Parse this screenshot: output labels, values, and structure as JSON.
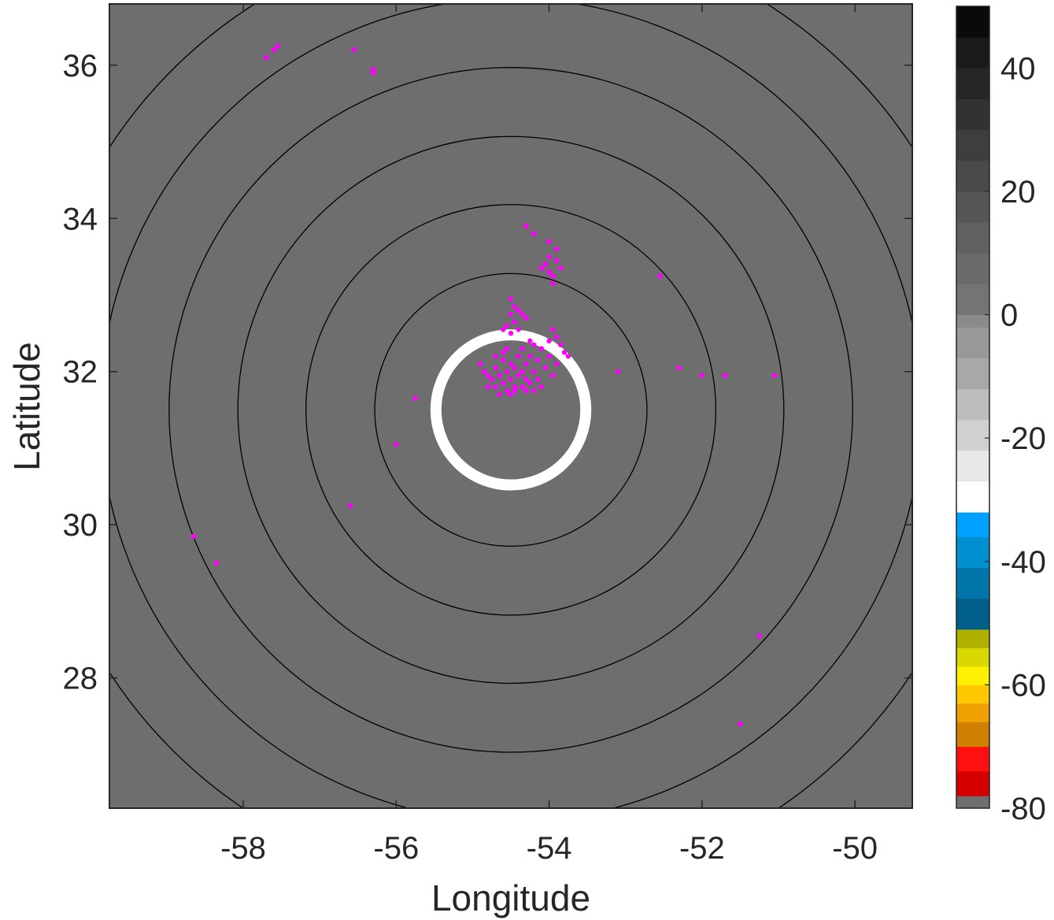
{
  "chart_data": {
    "type": "scatter",
    "xlabel": "Longitude",
    "ylabel": "Latitude",
    "xlim": [
      -59.75,
      -49.25
    ],
    "ylim": [
      26.3,
      36.8
    ],
    "xticks": [
      -58,
      -56,
      -54,
      -52,
      -50
    ],
    "xtick_labels": [
      "-58",
      "-56",
      "-54",
      "-52",
      "-50"
    ],
    "yticks": [
      28,
      30,
      32,
      34,
      36
    ],
    "ytick_labels": [
      "28",
      "30",
      "32",
      "34",
      "36"
    ],
    "background_color": "#6e6e6e",
    "grid": false,
    "range_rings": {
      "center": [
        -54.5,
        31.5
      ],
      "radii_deg": [
        1.78,
        2.68,
        3.57,
        4.47,
        5.37,
        6.27
      ],
      "color": "#000000"
    },
    "center_ring": {
      "center": [
        -54.5,
        31.5
      ],
      "radius_deg": 0.98,
      "color": "#ffffff"
    },
    "point_color": "#ff00ff",
    "points": [
      [
        -57.7,
        36.1
      ],
      [
        -57.6,
        36.2
      ],
      [
        -57.55,
        36.25
      ],
      [
        -56.55,
        36.2
      ],
      [
        -56.3,
        35.95
      ],
      [
        -56.3,
        35.9
      ],
      [
        -54.3,
        33.9
      ],
      [
        -54.2,
        33.8
      ],
      [
        -54.0,
        33.7
      ],
      [
        -53.9,
        33.6
      ],
      [
        -54.0,
        33.5
      ],
      [
        -53.9,
        33.45
      ],
      [
        -54.05,
        33.4
      ],
      [
        -53.85,
        33.35
      ],
      [
        -54.0,
        33.3
      ],
      [
        -53.95,
        33.25
      ],
      [
        -54.1,
        33.35
      ],
      [
        -53.95,
        33.15
      ],
      [
        -52.55,
        33.25
      ],
      [
        -54.5,
        32.95
      ],
      [
        -54.45,
        32.85
      ],
      [
        -54.4,
        32.8
      ],
      [
        -54.5,
        32.75
      ],
      [
        -54.35,
        32.75
      ],
      [
        -54.45,
        32.65
      ],
      [
        -54.55,
        32.6
      ],
      [
        -54.4,
        32.55
      ],
      [
        -54.5,
        32.5
      ],
      [
        -54.6,
        32.55
      ],
      [
        -54.3,
        32.7
      ],
      [
        -53.95,
        32.55
      ],
      [
        -53.9,
        32.45
      ],
      [
        -54.0,
        32.4
      ],
      [
        -53.85,
        32.35
      ],
      [
        -54.1,
        32.3
      ],
      [
        -53.8,
        32.25
      ],
      [
        -54.2,
        32.35
      ],
      [
        -54.25,
        32.2
      ],
      [
        -54.15,
        32.15
      ],
      [
        -54.0,
        32.2
      ],
      [
        -54.3,
        32.1
      ],
      [
        -53.9,
        32.1
      ],
      [
        -54.35,
        32.0
      ],
      [
        -54.2,
        32.0
      ],
      [
        -53.75,
        32.2
      ],
      [
        -54.05,
        32.05
      ],
      [
        -53.95,
        31.95
      ],
      [
        -54.6,
        32.15
      ],
      [
        -54.5,
        32.1
      ],
      [
        -54.7,
        32.05
      ],
      [
        -54.45,
        32.05
      ],
      [
        -54.55,
        32.0
      ],
      [
        -54.65,
        31.95
      ],
      [
        -54.4,
        31.95
      ],
      [
        -54.75,
        31.9
      ],
      [
        -54.5,
        31.9
      ],
      [
        -54.3,
        31.9
      ],
      [
        -54.6,
        31.85
      ],
      [
        -54.45,
        31.8
      ],
      [
        -54.7,
        31.8
      ],
      [
        -54.35,
        31.8
      ],
      [
        -54.55,
        31.75
      ],
      [
        -54.8,
        31.95
      ],
      [
        -54.85,
        32.0
      ],
      [
        -54.6,
        32.25
      ],
      [
        -54.4,
        32.2
      ],
      [
        -54.25,
        31.85
      ],
      [
        -54.15,
        31.9
      ],
      [
        -54.5,
        31.7
      ],
      [
        -54.65,
        31.7
      ],
      [
        -54.8,
        31.8
      ],
      [
        -54.9,
        32.1
      ],
      [
        -54.45,
        31.75
      ],
      [
        -54.3,
        31.75
      ],
      [
        -54.1,
        31.8
      ],
      [
        -54.55,
        32.3
      ],
      [
        -54.7,
        32.2
      ],
      [
        -54.25,
        32.4
      ],
      [
        -54.35,
        32.3
      ],
      [
        -54.2,
        31.75
      ],
      [
        -53.1,
        32.0
      ],
      [
        -52.3,
        32.05
      ],
      [
        -52.0,
        31.95
      ],
      [
        -51.7,
        31.95
      ],
      [
        -51.05,
        31.95
      ],
      [
        -55.75,
        31.65
      ],
      [
        -56.0,
        31.05
      ],
      [
        -56.6,
        30.25
      ],
      [
        -58.65,
        29.85
      ],
      [
        -58.35,
        29.5
      ],
      [
        -51.25,
        28.55
      ],
      [
        -51.5,
        27.4
      ]
    ]
  },
  "colorbar": {
    "ticks": [
      40,
      20,
      0,
      -20,
      -40,
      -60,
      -80
    ],
    "tick_labels": [
      "40",
      "20",
      "0",
      "-20",
      "-40",
      "-60",
      "-80"
    ],
    "range": [
      -80,
      50
    ],
    "segments": [
      {
        "from": -80,
        "to": -78,
        "color": "#6e6e6e"
      },
      {
        "from": -78,
        "to": -74,
        "color": "#d40000"
      },
      {
        "from": -74,
        "to": -70,
        "color": "#ff1010"
      },
      {
        "from": -70,
        "to": -66,
        "color": "#d08000"
      },
      {
        "from": -66,
        "to": -63,
        "color": "#f0a000"
      },
      {
        "from": -63,
        "to": -60,
        "color": "#ffc800"
      },
      {
        "from": -60,
        "to": -57,
        "color": "#ffef00"
      },
      {
        "from": -57,
        "to": -54,
        "color": "#d8d800"
      },
      {
        "from": -54,
        "to": -51,
        "color": "#b0b000"
      },
      {
        "from": -51,
        "to": -46,
        "color": "#005f8a"
      },
      {
        "from": -46,
        "to": -41,
        "color": "#0075a8"
      },
      {
        "from": -41,
        "to": -36,
        "color": "#0090d0"
      },
      {
        "from": -36,
        "to": -32,
        "color": "#00a0ff"
      },
      {
        "from": -32,
        "to": -27,
        "color": "#ffffff"
      },
      {
        "from": -27,
        "to": -22,
        "color": "#e8e8e8"
      },
      {
        "from": -22,
        "to": -17,
        "color": "#d0d0d0"
      },
      {
        "from": -17,
        "to": -12,
        "color": "#bcbcbc"
      },
      {
        "from": -12,
        "to": -7,
        "color": "#a8a8a8"
      },
      {
        "from": -7,
        "to": -2,
        "color": "#989898"
      },
      {
        "from": -2,
        "to": 0,
        "color": "#8a8a8a"
      },
      {
        "from": 0,
        "to": 5,
        "color": "#747474"
      },
      {
        "from": 5,
        "to": 10,
        "color": "#6a6a6a"
      },
      {
        "from": 10,
        "to": 15,
        "color": "#606060"
      },
      {
        "from": 15,
        "to": 20,
        "color": "#565656"
      },
      {
        "from": 20,
        "to": 25,
        "color": "#4a4a4a"
      },
      {
        "from": 25,
        "to": 30,
        "color": "#3e3e3e"
      },
      {
        "from": 30,
        "to": 35,
        "color": "#323232"
      },
      {
        "from": 35,
        "to": 40,
        "color": "#262626"
      },
      {
        "from": 40,
        "to": 45,
        "color": "#1a1a1a"
      },
      {
        "from": 45,
        "to": 50,
        "color": "#0a0a0a"
      }
    ]
  }
}
